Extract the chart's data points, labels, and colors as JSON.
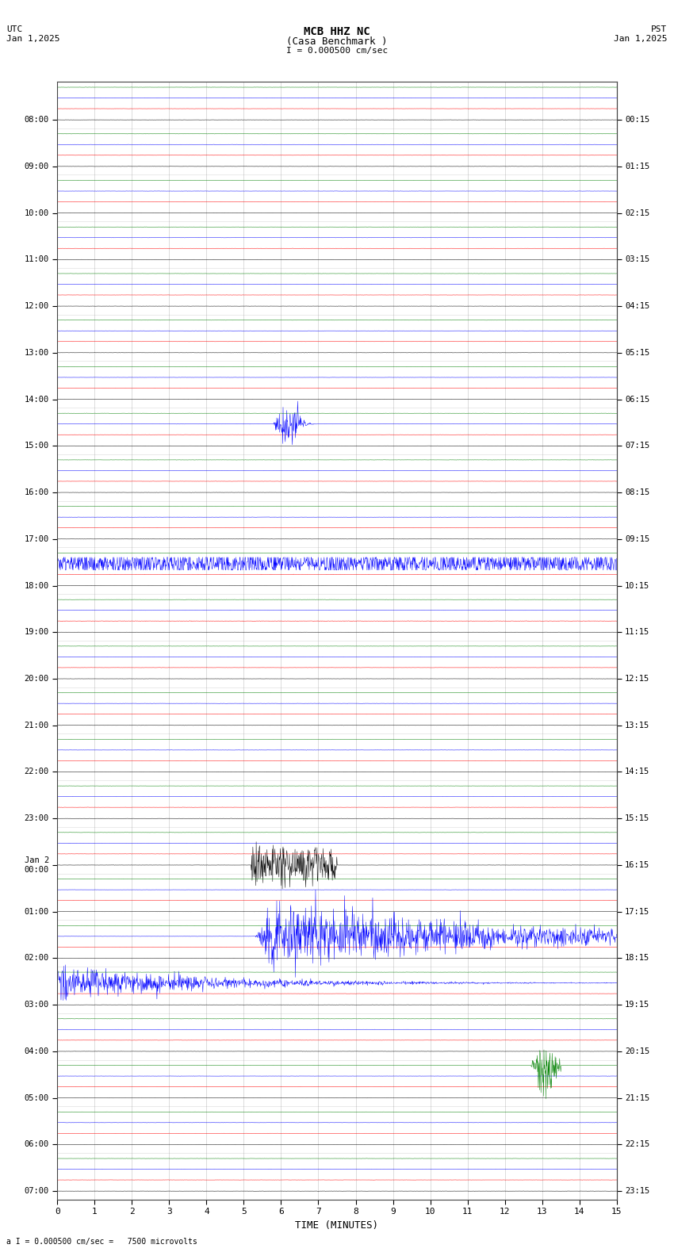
{
  "title_line1": "MCB HHZ NC",
  "title_line2": "(Casa Benchmark )",
  "scale_label": "I = 0.000500 cm/sec",
  "bottom_label": "a I = 0.000500 cm/sec =   7500 microvolts",
  "utc_label": "UTC",
  "utc_date": "Jan 1,2025",
  "pst_label": "PST",
  "pst_date": "Jan 1,2025",
  "xlabel": "TIME (MINUTES)",
  "left_times": [
    "08:00",
    "09:00",
    "10:00",
    "11:00",
    "12:00",
    "13:00",
    "14:00",
    "15:00",
    "16:00",
    "17:00",
    "18:00",
    "19:00",
    "20:00",
    "21:00",
    "22:00",
    "23:00",
    "Jan 2\n00:00",
    "01:00",
    "02:00",
    "03:00",
    "04:00",
    "05:00",
    "06:00",
    "07:00"
  ],
  "right_times": [
    "00:15",
    "01:15",
    "02:15",
    "03:15",
    "04:15",
    "05:15",
    "06:15",
    "07:15",
    "08:15",
    "09:15",
    "10:15",
    "11:15",
    "12:15",
    "13:15",
    "14:15",
    "15:15",
    "16:15",
    "17:15",
    "18:15",
    "19:15",
    "20:15",
    "21:15",
    "22:15",
    "23:15"
  ],
  "n_rows": 24,
  "minutes_per_row": 15,
  "background_color": "#ffffff",
  "colors_order": [
    "#000000",
    "#ff0000",
    "#0000ff",
    "#008000"
  ],
  "figsize": [
    8.5,
    15.84
  ],
  "dpi": 100
}
